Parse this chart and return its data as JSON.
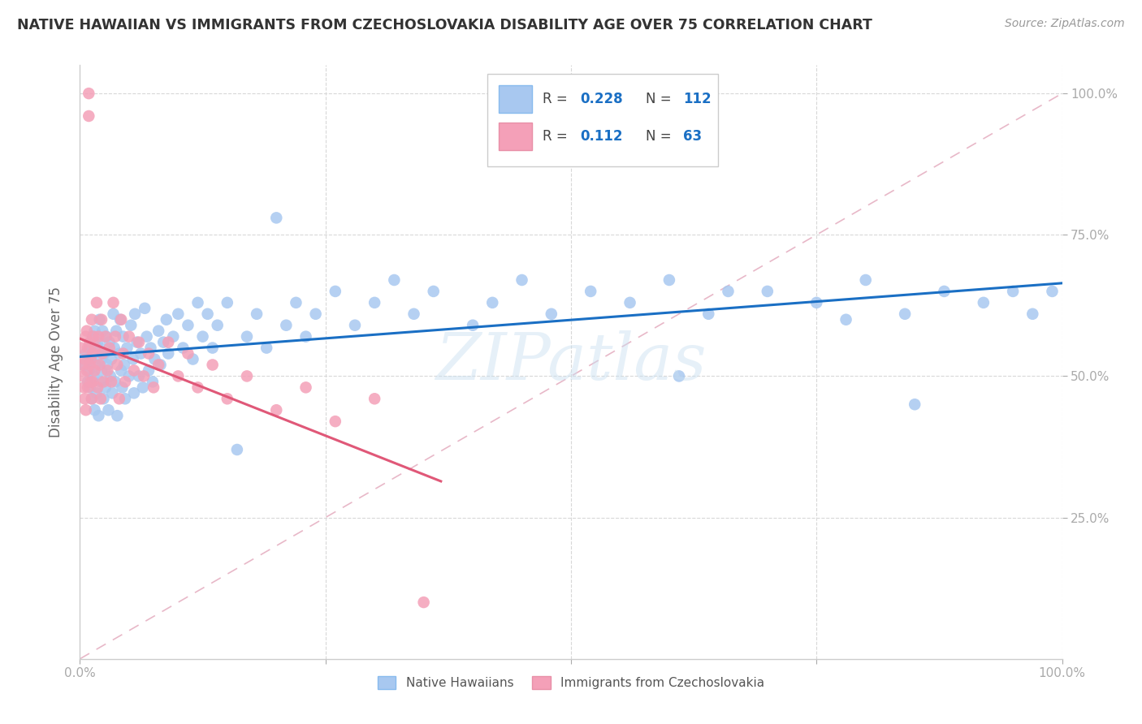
{
  "title": "NATIVE HAWAIIAN VS IMMIGRANTS FROM CZECHOSLOVAKIA DISABILITY AGE OVER 75 CORRELATION CHART",
  "source": "Source: ZipAtlas.com",
  "ylabel": "Disability Age Over 75",
  "legend_label1": "Native Hawaiians",
  "legend_label2": "Immigrants from Czechoslovakia",
  "R1": 0.228,
  "N1": 112,
  "R2": 0.112,
  "N2": 63,
  "color1": "#a8c8f0",
  "color2": "#f4a0b8",
  "line_color1": "#1a6fc4",
  "line_color2": "#e05878",
  "diag_color": "#e8b8c8",
  "watermark": "ZIPatlas",
  "xlim": [
    0.0,
    1.0
  ],
  "ylim": [
    0.0,
    1.05
  ],
  "x_ticks": [
    0.0,
    0.25,
    0.5,
    0.75,
    1.0
  ],
  "y_ticks": [
    0.25,
    0.5,
    0.75,
    1.0
  ],
  "scatter1_x": [
    0.004,
    0.006,
    0.008,
    0.009,
    0.01,
    0.01,
    0.011,
    0.012,
    0.013,
    0.014,
    0.015,
    0.015,
    0.016,
    0.017,
    0.018,
    0.019,
    0.02,
    0.02,
    0.021,
    0.022,
    0.022,
    0.023,
    0.024,
    0.025,
    0.026,
    0.027,
    0.028,
    0.029,
    0.03,
    0.031,
    0.032,
    0.033,
    0.034,
    0.035,
    0.036,
    0.037,
    0.038,
    0.04,
    0.041,
    0.042,
    0.043,
    0.044,
    0.045,
    0.046,
    0.048,
    0.05,
    0.052,
    0.054,
    0.055,
    0.056,
    0.058,
    0.06,
    0.062,
    0.064,
    0.066,
    0.068,
    0.07,
    0.072,
    0.074,
    0.076,
    0.08,
    0.082,
    0.085,
    0.088,
    0.09,
    0.095,
    0.1,
    0.105,
    0.11,
    0.115,
    0.12,
    0.125,
    0.13,
    0.135,
    0.14,
    0.15,
    0.16,
    0.17,
    0.18,
    0.19,
    0.2,
    0.21,
    0.22,
    0.23,
    0.24,
    0.26,
    0.28,
    0.3,
    0.32,
    0.34,
    0.36,
    0.4,
    0.42,
    0.45,
    0.48,
    0.52,
    0.56,
    0.6,
    0.64,
    0.7,
    0.75,
    0.8,
    0.84,
    0.88,
    0.92,
    0.95,
    0.97,
    0.99,
    0.85,
    0.78,
    0.66,
    0.61
  ],
  "scatter1_y": [
    0.52,
    0.54,
    0.49,
    0.51,
    0.55,
    0.48,
    0.53,
    0.46,
    0.57,
    0.5,
    0.44,
    0.58,
    0.52,
    0.47,
    0.56,
    0.43,
    0.55,
    0.6,
    0.49,
    0.53,
    0.51,
    0.58,
    0.46,
    0.54,
    0.48,
    0.57,
    0.52,
    0.44,
    0.56,
    0.5,
    0.53,
    0.47,
    0.61,
    0.55,
    0.49,
    0.58,
    0.43,
    0.54,
    0.6,
    0.51,
    0.48,
    0.57,
    0.52,
    0.46,
    0.55,
    0.5,
    0.59,
    0.53,
    0.47,
    0.61,
    0.56,
    0.5,
    0.54,
    0.48,
    0.62,
    0.57,
    0.51,
    0.55,
    0.49,
    0.53,
    0.58,
    0.52,
    0.56,
    0.6,
    0.54,
    0.57,
    0.61,
    0.55,
    0.59,
    0.53,
    0.63,
    0.57,
    0.61,
    0.55,
    0.59,
    0.63,
    0.37,
    0.57,
    0.61,
    0.55,
    0.78,
    0.59,
    0.63,
    0.57,
    0.61,
    0.65,
    0.59,
    0.63,
    0.67,
    0.61,
    0.65,
    0.59,
    0.63,
    0.67,
    0.61,
    0.65,
    0.63,
    0.67,
    0.61,
    0.65,
    0.63,
    0.67,
    0.61,
    0.65,
    0.63,
    0.65,
    0.61,
    0.65,
    0.45,
    0.6,
    0.65,
    0.5
  ],
  "scatter2_x": [
    0.001,
    0.002,
    0.003,
    0.004,
    0.005,
    0.005,
    0.006,
    0.006,
    0.007,
    0.007,
    0.008,
    0.008,
    0.009,
    0.009,
    0.01,
    0.01,
    0.011,
    0.011,
    0.012,
    0.012,
    0.013,
    0.013,
    0.014,
    0.015,
    0.016,
    0.017,
    0.018,
    0.019,
    0.02,
    0.021,
    0.022,
    0.023,
    0.024,
    0.026,
    0.028,
    0.03,
    0.032,
    0.034,
    0.036,
    0.038,
    0.04,
    0.042,
    0.044,
    0.046,
    0.05,
    0.055,
    0.06,
    0.065,
    0.07,
    0.075,
    0.08,
    0.09,
    0.1,
    0.11,
    0.12,
    0.135,
    0.15,
    0.17,
    0.2,
    0.23,
    0.26,
    0.3,
    0.35
  ],
  "scatter2_y": [
    0.55,
    0.52,
    0.5,
    0.48,
    0.53,
    0.46,
    0.57,
    0.44,
    0.51,
    0.58,
    0.55,
    0.48,
    1.0,
    0.96,
    0.52,
    0.56,
    0.49,
    0.53,
    0.46,
    0.6,
    0.54,
    0.49,
    0.57,
    0.51,
    0.55,
    0.63,
    0.48,
    0.57,
    0.52,
    0.46,
    0.6,
    0.54,
    0.49,
    0.57,
    0.51,
    0.55,
    0.49,
    0.63,
    0.57,
    0.52,
    0.46,
    0.6,
    0.54,
    0.49,
    0.57,
    0.51,
    0.56,
    0.5,
    0.54,
    0.48,
    0.52,
    0.56,
    0.5,
    0.54,
    0.48,
    0.52,
    0.46,
    0.5,
    0.44,
    0.48,
    0.42,
    0.46,
    0.1
  ]
}
